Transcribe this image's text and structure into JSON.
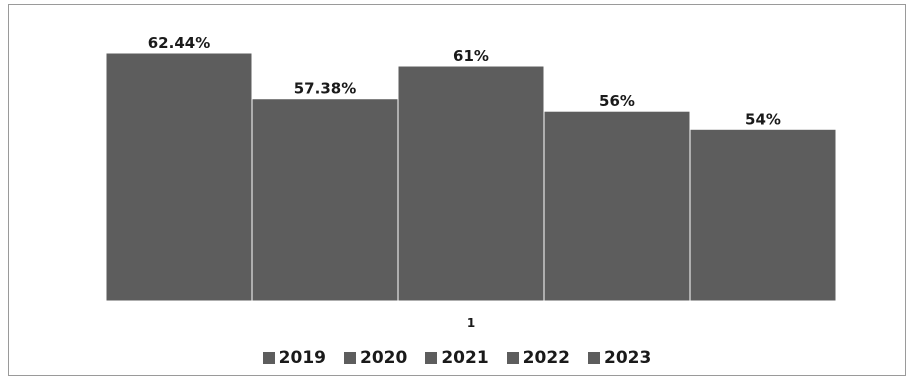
{
  "chart_data": {
    "type": "bar",
    "categories": [
      "1"
    ],
    "series": [
      {
        "name": "2019",
        "values": [
          62.44
        ],
        "label": "62.44%"
      },
      {
        "name": "2020",
        "values": [
          57.38
        ],
        "label": "57.38%"
      },
      {
        "name": "2021",
        "values": [
          61
        ],
        "label": "61%"
      },
      {
        "name": "2022",
        "values": [
          56
        ],
        "label": "56%"
      },
      {
        "name": "2023",
        "values": [
          54
        ],
        "label": "54%"
      }
    ],
    "ylim": [
      35,
      63.5
    ],
    "bar_color": "#5d5d5d",
    "legend_position": "bottom",
    "grid": false
  }
}
